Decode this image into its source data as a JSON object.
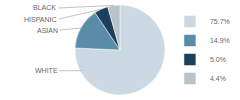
{
  "chart_data": {
    "type": "pie",
    "categories": [
      "WHITE",
      "ASIAN",
      "HISPANIC",
      "BLACK"
    ],
    "values": [
      75.7,
      14.9,
      5.0,
      4.4
    ],
    "value_labels": [
      "75.7%",
      "14.9%",
      "5.0%",
      "4.4%"
    ],
    "colors": [
      "#ccd9e3",
      "#5a8ca8",
      "#1e3f5c",
      "#b8c4cc"
    ],
    "legend": "right"
  }
}
